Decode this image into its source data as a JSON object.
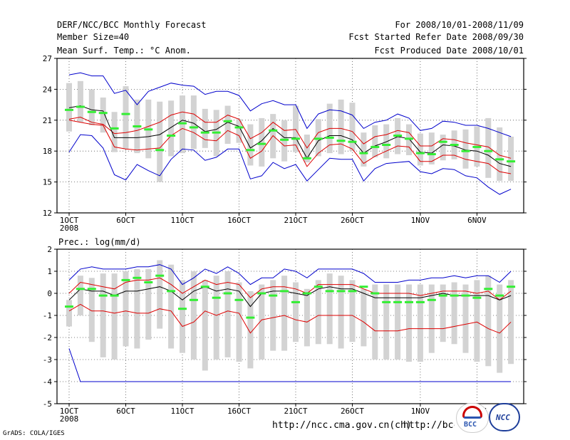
{
  "header": {
    "title": "DERF/NCC/BCC Monthly Forecast",
    "member_size": "Member Size=40",
    "variable": "Mean Surf. Temp.: °C Anom.",
    "forecast_period": "For 2008/10/01-2008/11/09",
    "started_date": "Fcst Started Refer Date 2008/09/30",
    "produced_date": "Fcst Produced Date 2008/10/01"
  },
  "footer": {
    "url_ncc": "http://ncc.cma.gov.cn(ch)",
    "url_bcc": "http://bcc.cma.gov.cn",
    "grads_credit": "GrADS: COLA/IGES",
    "logo_bcc_text": "BCC",
    "logo_ncc_text": "NCC"
  },
  "colors": {
    "envelope": "#0000cc",
    "spread": "#dd0000",
    "median": "#000000",
    "box": "#d3d3d3",
    "mean_marker": "#33ee33"
  },
  "chart_data": [
    {
      "type": "box",
      "title": "Mean Surf. Temp.: °C Anom.",
      "ylim": [
        12,
        27
      ],
      "yticks": [
        12,
        15,
        18,
        21,
        24,
        27
      ],
      "grid": true,
      "x_tick_labels": [
        "1OCT",
        "6OCT",
        "11OCT",
        "16OCT",
        "21OCT",
        "26OCT",
        "1NOV",
        "6NOV"
      ],
      "x_tick_days": [
        1,
        6,
        11,
        16,
        21,
        26,
        32,
        37
      ],
      "year_label": "2008",
      "days": [
        1,
        2,
        3,
        4,
        5,
        6,
        7,
        8,
        9,
        10,
        11,
        12,
        13,
        14,
        15,
        16,
        17,
        18,
        19,
        20,
        21,
        22,
        23,
        24,
        25,
        26,
        27,
        28,
        29,
        30,
        31,
        32,
        33,
        34,
        35,
        36,
        37,
        38,
        39,
        40
      ],
      "series": [
        {
          "name": "max",
          "values": [
            25.4,
            25.6,
            25.3,
            25.3,
            23.6,
            23.9,
            22.5,
            23.8,
            24.2,
            24.6,
            24.4,
            24.3,
            23.5,
            23.8,
            23.8,
            23.4,
            21.9,
            22.6,
            22.9,
            22.5,
            22.5,
            20.2,
            21.6,
            22.0,
            21.9,
            21.5,
            20.2,
            20.8,
            21.0,
            21.6,
            21.2,
            20.0,
            20.2,
            20.9,
            20.8,
            20.5,
            20.5,
            20.2,
            19.8,
            19.4
          ]
        },
        {
          "name": "upper",
          "values": [
            21.1,
            21.3,
            20.8,
            20.6,
            19.7,
            19.8,
            20.0,
            20.4,
            20.8,
            21.5,
            21.8,
            21.6,
            20.8,
            20.8,
            21.5,
            21.1,
            19.2,
            19.8,
            20.8,
            20.0,
            20.1,
            18.3,
            19.8,
            20.2,
            20.2,
            19.9,
            18.7,
            19.4,
            19.6,
            20.0,
            19.8,
            18.5,
            18.5,
            19.2,
            19.1,
            18.8,
            18.6,
            18.4,
            17.6,
            17.3
          ]
        },
        {
          "name": "median",
          "values": [
            22.2,
            22.4,
            22.0,
            21.9,
            19.3,
            19.3,
            19.3,
            19.4,
            19.6,
            20.3,
            21.0,
            20.7,
            19.9,
            20.1,
            20.8,
            20.4,
            18.3,
            19.0,
            20.2,
            19.3,
            19.3,
            17.3,
            19.0,
            19.5,
            19.5,
            19.1,
            17.8,
            18.5,
            18.9,
            19.4,
            19.2,
            17.9,
            17.8,
            18.6,
            18.5,
            18.1,
            18.0,
            17.6,
            16.8,
            16.5
          ]
        },
        {
          "name": "lower",
          "values": [
            21.0,
            20.8,
            20.6,
            20.5,
            18.4,
            18.2,
            18.1,
            18.2,
            18.3,
            19.5,
            20.2,
            19.8,
            19.1,
            19.0,
            20.0,
            19.5,
            17.3,
            18.0,
            19.5,
            18.5,
            18.6,
            16.5,
            17.8,
            18.6,
            18.7,
            18.2,
            16.8,
            17.5,
            18.0,
            18.5,
            18.4,
            17.0,
            17.0,
            17.6,
            17.6,
            17.2,
            17.0,
            16.8,
            16.0,
            15.8
          ]
        },
        {
          "name": "min",
          "values": [
            17.9,
            19.6,
            19.5,
            18.3,
            15.7,
            15.2,
            16.7,
            16.1,
            15.6,
            17.2,
            18.2,
            18.1,
            17.1,
            17.4,
            18.2,
            18.2,
            15.3,
            15.6,
            16.9,
            16.3,
            16.7,
            15.1,
            16.2,
            17.3,
            17.2,
            17.2,
            15.1,
            16.3,
            16.8,
            16.9,
            17.0,
            16.0,
            15.8,
            16.3,
            16.2,
            15.6,
            15.4,
            14.5,
            13.8,
            14.3
          ]
        },
        {
          "name": "box_high",
          "values": [
            24.6,
            24.8,
            24.0,
            23.2,
            21.8,
            24.3,
            23.0,
            23.0,
            22.8,
            22.9,
            23.4,
            23.4,
            22.1,
            22.0,
            22.4,
            21.1,
            20.6,
            21.2,
            21.6,
            21.0,
            22.4,
            19.6,
            21.1,
            22.6,
            23.0,
            22.7,
            19.8,
            20.5,
            20.6,
            21.2,
            20.6,
            19.7,
            19.8,
            19.6,
            20.0,
            20.1,
            20.4,
            21.2,
            20.3,
            19.4
          ]
        },
        {
          "name": "box_low",
          "values": [
            19.9,
            20.8,
            20.5,
            19.8,
            17.9,
            18.2,
            17.8,
            17.3,
            15.0,
            17.5,
            17.8,
            18.2,
            18.3,
            17.5,
            18.7,
            18.8,
            16.6,
            16.5,
            17.3,
            17.0,
            17.9,
            16.9,
            17.5,
            17.8,
            17.7,
            18.0,
            16.5,
            17.4,
            17.3,
            17.7,
            17.6,
            16.6,
            16.7,
            17.1,
            17.2,
            16.3,
            16.5,
            15.4,
            15.1,
            15.1
          ]
        },
        {
          "name": "mean",
          "values": [
            22.0,
            22.3,
            21.8,
            21.7,
            20.2,
            21.6,
            20.4,
            20.1,
            18.1,
            19.5,
            20.7,
            20.3,
            19.8,
            19.8,
            20.9,
            20.3,
            18.1,
            18.7,
            20.0,
            19.1,
            19.2,
            17.3,
            19.2,
            19.3,
            19.0,
            18.9,
            17.8,
            18.4,
            18.6,
            19.5,
            19.2,
            17.8,
            17.7,
            18.9,
            18.6,
            18.0,
            18.4,
            18.0,
            17.2,
            17.0
          ]
        }
      ]
    },
    {
      "type": "box",
      "title": "Prec.: log(mm/d)",
      "ylim": [
        -5,
        2
      ],
      "yticks": [
        -5,
        -4,
        -3,
        -2,
        -1,
        0,
        1,
        2
      ],
      "grid": true,
      "x_tick_labels": [
        "1OCT",
        "6OCT",
        "11OCT",
        "16OCT",
        "21OCT",
        "26OCT",
        "1NOV",
        "6NOV"
      ],
      "x_tick_days": [
        1,
        6,
        11,
        16,
        21,
        26,
        32,
        37
      ],
      "year_label": "2008",
      "days": [
        1,
        2,
        3,
        4,
        5,
        6,
        7,
        8,
        9,
        10,
        11,
        12,
        13,
        14,
        15,
        16,
        17,
        18,
        19,
        20,
        21,
        22,
        23,
        24,
        25,
        26,
        27,
        28,
        29,
        30,
        31,
        32,
        33,
        34,
        35,
        36,
        37,
        38,
        39,
        40
      ],
      "series": [
        {
          "name": "max",
          "values": [
            0.6,
            1.1,
            1.2,
            1.1,
            1.1,
            1.1,
            1.2,
            1.2,
            1.3,
            1.1,
            0.4,
            0.7,
            1.1,
            0.9,
            1.2,
            0.9,
            0.4,
            0.7,
            0.7,
            1.1,
            1.0,
            0.7,
            1.1,
            1.1,
            1.1,
            1.1,
            0.9,
            0.5,
            0.5,
            0.5,
            0.6,
            0.6,
            0.7,
            0.7,
            0.8,
            0.7,
            0.8,
            0.8,
            0.5,
            1.0
          ]
        },
        {
          "name": "upper",
          "values": [
            0.0,
            0.5,
            0.4,
            0.3,
            0.2,
            0.5,
            0.6,
            0.6,
            0.7,
            0.4,
            0.0,
            0.3,
            0.6,
            0.4,
            0.5,
            0.4,
            -0.2,
            0.2,
            0.3,
            0.3,
            0.2,
            0.0,
            0.4,
            0.4,
            0.4,
            0.4,
            0.2,
            0.0,
            0.0,
            0.0,
            0.0,
            -0.1,
            0.0,
            0.1,
            0.1,
            0.1,
            0.0,
            0.1,
            -0.3,
            0.1
          ]
        },
        {
          "name": "median",
          "values": [
            -0.3,
            0.2,
            0.1,
            0.1,
            -0.1,
            0.1,
            0.1,
            0.2,
            0.3,
            0.1,
            -0.3,
            0.1,
            0.3,
            0.1,
            0.2,
            0.1,
            -0.6,
            0.0,
            0.1,
            0.1,
            0.0,
            -0.1,
            0.2,
            0.3,
            0.2,
            0.2,
            0.0,
            -0.2,
            -0.2,
            -0.2,
            -0.2,
            -0.2,
            -0.1,
            0.0,
            -0.1,
            -0.1,
            -0.1,
            -0.1,
            -0.3,
            -0.1
          ]
        },
        {
          "name": "lower",
          "values": [
            -0.8,
            -0.5,
            -0.8,
            -0.8,
            -0.9,
            -0.8,
            -0.9,
            -0.9,
            -0.7,
            -0.8,
            -1.5,
            -1.3,
            -0.8,
            -1.0,
            -0.8,
            -0.9,
            -1.8,
            -1.2,
            -1.1,
            -1.0,
            -1.2,
            -1.3,
            -1.0,
            -1.0,
            -1.0,
            -1.0,
            -1.3,
            -1.7,
            -1.7,
            -1.7,
            -1.6,
            -1.6,
            -1.6,
            -1.6,
            -1.5,
            -1.4,
            -1.3,
            -1.6,
            -1.8,
            -1.3
          ]
        },
        {
          "name": "min",
          "values": [
            -2.5,
            -4.0,
            -4.0,
            -4.0,
            -4.0,
            -4.0,
            -4.0,
            -4.0,
            -4.0,
            -4.0,
            -4.0,
            -4.0,
            -4.0,
            -4.0,
            -4.0,
            -4.0,
            -4.0,
            -4.0,
            -4.0,
            -4.0,
            -4.0,
            -4.0,
            -4.0,
            -4.0,
            -4.0,
            -4.0,
            -4.0,
            -4.0,
            -4.0,
            -4.0,
            -4.0,
            -4.0,
            -4.0,
            -4.0,
            -4.0,
            -4.0,
            -4.0,
            -4.0,
            -4.0,
            -4.0
          ]
        },
        {
          "name": "box_high",
          "values": [
            -0.3,
            0.8,
            0.7,
            0.9,
            0.9,
            1.0,
            1.1,
            1.1,
            1.5,
            1.3,
            0.6,
            1.0,
            0.6,
            0.8,
            1.0,
            0.5,
            0.1,
            0.4,
            0.6,
            0.8,
            0.5,
            0.2,
            0.6,
            0.9,
            0.8,
            0.6,
            0.2,
            0.4,
            0.4,
            0.4,
            0.4,
            0.4,
            0.4,
            0.4,
            0.5,
            0.4,
            0.6,
            0.8,
            0.4,
            0.6
          ]
        },
        {
          "name": "box_low",
          "values": [
            -1.5,
            -1.0,
            -2.2,
            -2.9,
            -3.0,
            -2.4,
            -2.5,
            -2.1,
            -1.6,
            -2.5,
            -2.7,
            -3.0,
            -3.5,
            -3.0,
            -2.9,
            -3.1,
            -3.4,
            -3.0,
            -2.6,
            -2.6,
            -2.2,
            -2.4,
            -2.3,
            -2.3,
            -2.5,
            -2.2,
            -2.4,
            -3.0,
            -3.0,
            -3.0,
            -3.1,
            -3.1,
            -2.7,
            -2.2,
            -2.3,
            -2.7,
            -3.1,
            -3.3,
            -3.6,
            -3.2
          ]
        },
        {
          "name": "mean",
          "values": [
            -0.6,
            0.2,
            0.2,
            -0.1,
            -0.1,
            0.6,
            0.7,
            0.5,
            0.8,
            0.1,
            -0.7,
            -0.3,
            0.3,
            -0.2,
            0.0,
            -0.3,
            -1.1,
            0.0,
            -0.1,
            0.1,
            -0.4,
            0.0,
            0.3,
            0.1,
            0.1,
            0.1,
            0.3,
            0.0,
            -0.4,
            -0.4,
            -0.4,
            -0.4,
            -0.3,
            -0.1,
            -0.1,
            -0.1,
            -0.2,
            0.2,
            -0.1,
            0.3
          ]
        }
      ]
    }
  ]
}
